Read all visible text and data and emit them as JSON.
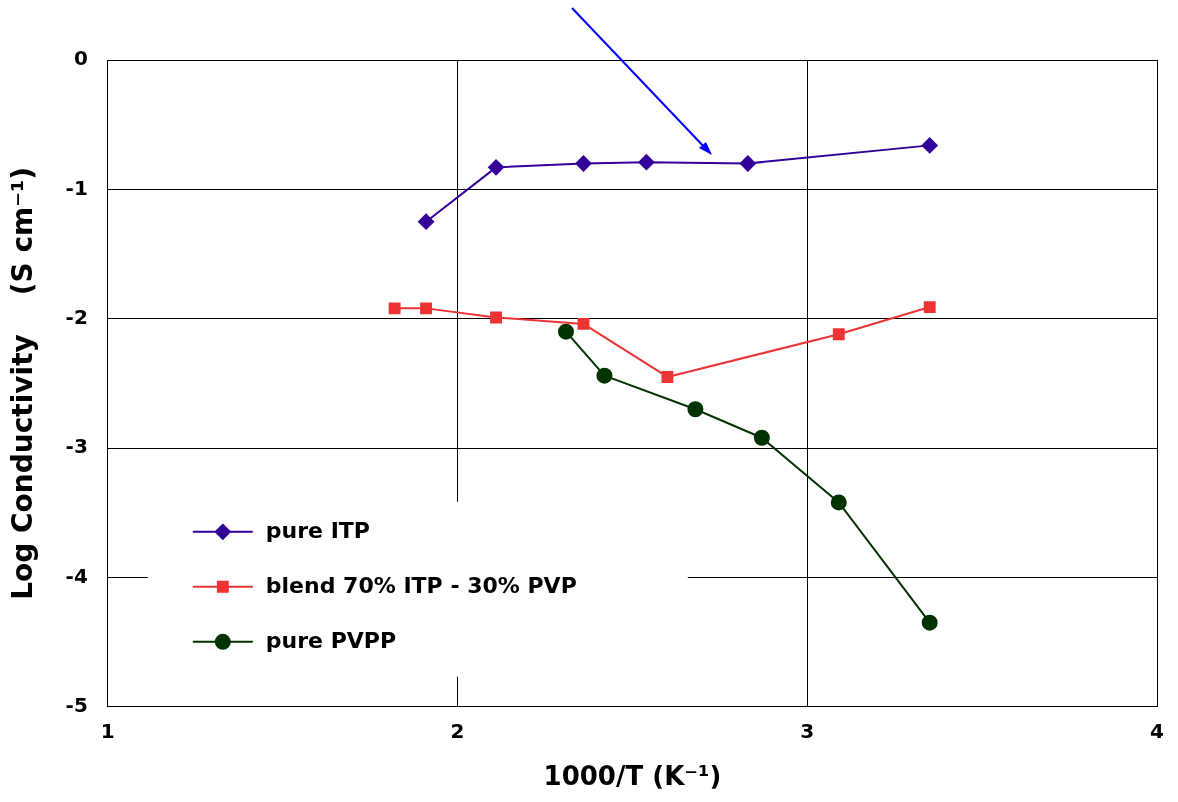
{
  "chart_data": {
    "type": "line",
    "xlabel": "1000/T (K⁻¹)",
    "ylabel": "Log Conductivity    (S cm⁻¹)",
    "xlim": [
      1,
      4
    ],
    "xticks": [
      1,
      2,
      3,
      4
    ],
    "ylim": [
      -5,
      0
    ],
    "yticks": [
      -5,
      -4,
      -3,
      -2,
      -1,
      0
    ],
    "grid": true,
    "legend": "bottom left",
    "line_style": "solid",
    "series": [
      {
        "name": "pure ITP",
        "color": "#330099",
        "marker": "diamond",
        "x": [
          1.91,
          2.11,
          2.36,
          2.54,
          2.83,
          3.35
        ],
        "values": [
          -1.25,
          -0.83,
          -0.8,
          -0.79,
          -0.8,
          -0.66
        ]
      },
      {
        "name": "blend 70% ITP - 30% PVP",
        "color": "#ee3333",
        "marker": "square",
        "x": [
          1.82,
          1.91,
          2.11,
          2.36,
          2.6,
          3.09,
          3.35
        ],
        "values": [
          -1.92,
          -1.92,
          -1.99,
          -2.04,
          -2.45,
          -2.12,
          -1.91
        ]
      },
      {
        "name": "pure PVPP",
        "color": "#003300",
        "marker": "circle",
        "x": [
          2.31,
          2.42,
          2.68,
          2.87,
          3.09,
          3.35
        ],
        "values": [
          -2.1,
          -2.44,
          -2.7,
          -2.92,
          -3.42,
          -4.35
        ]
      }
    ]
  }
}
